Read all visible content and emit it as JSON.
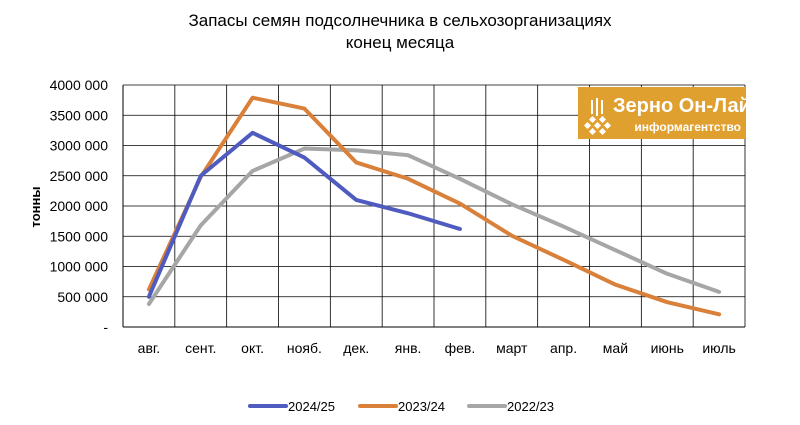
{
  "chart_data": {
    "type": "line",
    "title_lines": [
      "Запасы семян подсолнечника в сельхозорганизациях",
      "конец месяца"
    ],
    "ylabel": "тонны",
    "xlabel": "",
    "categories": [
      "авг.",
      "сент.",
      "окт.",
      "нояб.",
      "дек.",
      "янв.",
      "фев.",
      "март",
      "апр.",
      "май",
      "июнь",
      "июль"
    ],
    "y_ticks": [
      0,
      500000,
      1000000,
      1500000,
      2000000,
      2500000,
      3000000,
      3500000,
      4000000
    ],
    "y_tick_labels": [
      "-",
      "500 000",
      "1000 000",
      "1500 000",
      "2000 000",
      "2500 000",
      "3000 000",
      "3500 000",
      "4000 000"
    ],
    "ylim": [
      0,
      4000000
    ],
    "grid": true,
    "legend_position": "bottom",
    "series": [
      {
        "name": "2024/25",
        "color": "#4f5bbf",
        "values": [
          500000,
          2500000,
          3210000,
          2800000,
          2100000,
          1880000,
          1620000,
          null,
          null,
          null,
          null,
          null
        ]
      },
      {
        "name": "2023/24",
        "color": "#d9813a",
        "values": [
          620000,
          2480000,
          3790000,
          3610000,
          2720000,
          2450000,
          2040000,
          1510000,
          1110000,
          700000,
          410000,
          210000
        ]
      },
      {
        "name": "2022/23",
        "color": "#a6a6a6",
        "values": [
          380000,
          1680000,
          2580000,
          2950000,
          2920000,
          2840000,
          2450000,
          2030000,
          1660000,
          1270000,
          880000,
          580000
        ]
      }
    ]
  },
  "logo": {
    "main": "Зерно Он-Лайн",
    "sub": "информагентство",
    "color": "#e0a030"
  }
}
